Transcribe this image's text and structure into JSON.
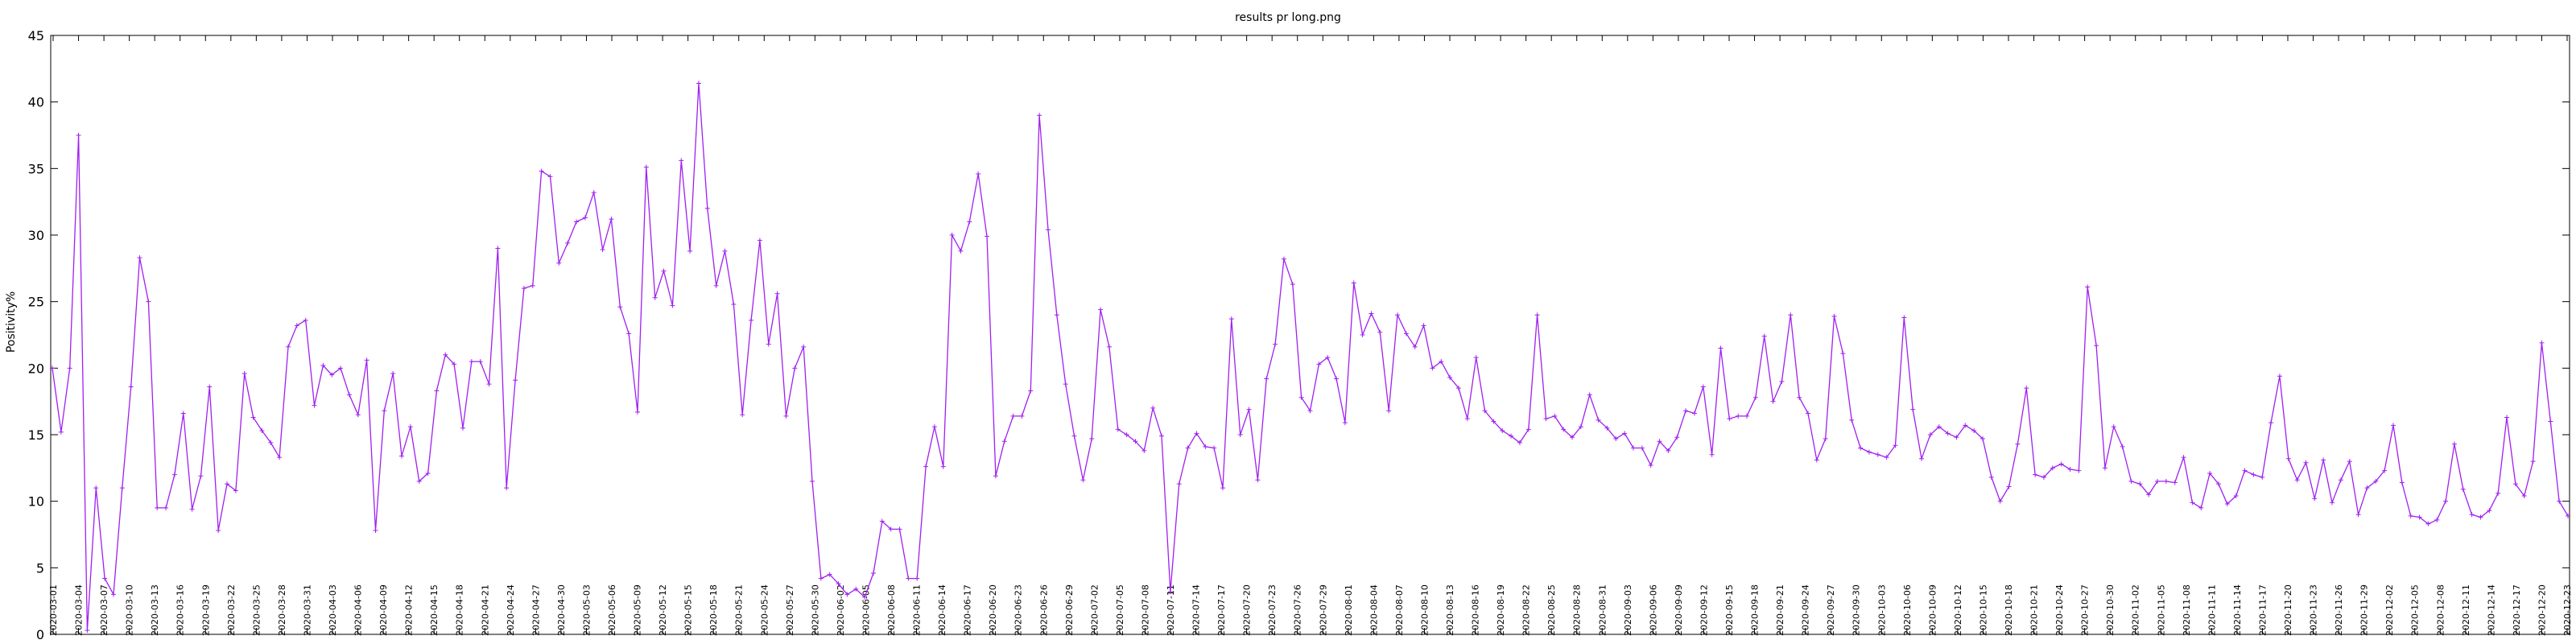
{
  "chart_data": {
    "type": "line",
    "title": "results pr long.png",
    "xlabel": "",
    "ylabel": "Positivity%",
    "ylim": [
      0,
      45
    ],
    "yticks": [
      0,
      5,
      10,
      15,
      20,
      25,
      30,
      35,
      40,
      45
    ],
    "x_start_date": "2020-03-01",
    "x_tick_step_days": 3,
    "x_tick_count": 100,
    "line_color": "#a020f0",
    "series": [
      {
        "name": "Positivity%",
        "values": [
          20.0,
          15.2,
          20.0,
          37.5,
          0.3,
          11.0,
          4.2,
          3.0,
          11.0,
          18.6,
          28.3,
          25.0,
          9.5,
          9.5,
          12.0,
          16.6,
          9.4,
          11.9,
          18.6,
          7.8,
          11.3,
          10.8,
          19.6,
          16.3,
          15.3,
          14.4,
          13.3,
          21.6,
          23.2,
          23.6,
          17.2,
          20.2,
          19.5,
          20.0,
          18.0,
          16.5,
          20.6,
          7.8,
          16.8,
          19.6,
          13.4,
          15.6,
          11.5,
          12.1,
          18.3,
          21.0,
          20.3,
          15.5,
          20.5,
          20.5,
          18.8,
          29.0,
          11.0,
          19.1,
          26.0,
          26.2,
          34.8,
          34.4,
          27.9,
          29.4,
          31.0,
          31.3,
          33.2,
          28.9,
          31.2,
          24.6,
          22.6,
          16.7,
          35.1,
          25.3,
          27.3,
          24.7,
          35.6,
          28.8,
          41.4,
          32.0,
          26.2,
          28.8,
          24.8,
          16.5,
          23.6,
          29.6,
          21.8,
          25.6,
          16.4,
          20.0,
          21.6,
          11.5,
          4.2,
          4.5,
          3.8,
          3.0,
          3.4,
          2.8,
          4.6,
          8.5,
          7.9,
          7.9,
          4.2,
          4.2,
          12.6,
          15.6,
          12.6,
          30.0,
          28.8,
          31.0,
          34.6,
          29.9,
          11.9,
          14.5,
          16.4,
          16.4,
          18.3,
          39.0,
          30.4,
          24.0,
          18.8,
          14.9,
          11.6,
          14.7,
          24.4,
          21.6,
          15.4,
          15.0,
          14.5,
          13.8,
          17.0,
          14.9,
          3.2,
          11.3,
          14.0,
          15.1,
          14.1,
          14.0,
          11.0,
          23.7,
          15.0,
          16.9,
          11.6,
          19.2,
          21.8,
          28.2,
          26.3,
          17.8,
          16.8,
          20.3,
          20.8,
          19.2,
          15.9,
          26.4,
          22.5,
          24.1,
          22.7,
          16.8,
          24.0,
          22.6,
          21.6,
          23.2,
          20.0,
          20.5,
          19.3,
          18.5,
          16.2,
          20.8,
          16.8,
          16.0,
          15.3,
          14.9,
          14.4,
          15.4,
          24.0,
          16.2,
          16.4,
          15.4,
          14.8,
          15.6,
          18.0,
          16.1,
          15.5,
          14.7,
          15.1,
          14.0,
          14.0,
          12.7,
          14.5,
          13.8,
          14.8,
          16.8,
          16.6,
          18.6,
          13.5,
          21.5,
          16.2,
          16.4,
          16.4,
          17.8,
          22.4,
          17.5,
          19.0,
          24.0,
          17.8,
          16.6,
          13.1,
          14.7,
          23.9,
          21.1,
          16.1,
          14.0,
          13.7,
          13.5,
          13.3,
          14.2,
          23.8,
          16.9,
          13.2,
          15.0,
          15.6,
          15.1,
          14.8,
          15.7,
          15.3,
          14.7,
          11.8,
          10.0,
          11.1,
          14.3,
          18.5,
          12.0,
          11.8,
          12.5,
          12.8,
          12.4,
          12.3,
          26.1,
          21.7,
          12.5,
          15.6,
          14.1,
          11.5,
          11.3,
          10.5,
          11.5,
          11.5,
          11.4,
          13.3,
          9.9,
          9.5,
          12.1,
          11.3,
          9.8,
          10.4,
          12.3,
          12.0,
          11.8,
          15.9,
          19.4,
          13.2,
          11.6,
          12.9,
          10.2,
          13.1,
          9.9,
          11.6,
          13.0,
          9.0,
          11.0,
          11.5,
          12.3,
          15.7,
          11.4,
          8.9,
          8.8,
          8.3,
          8.6,
          10.0,
          14.3,
          10.9,
          9.0,
          8.8,
          9.3,
          10.6,
          16.3,
          11.3,
          10.4,
          13.0,
          21.9,
          16.0,
          10.0,
          8.9
        ]
      }
    ]
  }
}
